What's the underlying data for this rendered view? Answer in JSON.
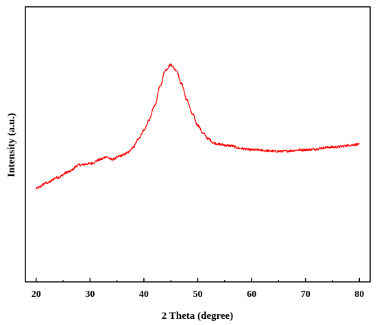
{
  "chart_data": {
    "type": "line",
    "xlabel": "2 Theta (degree)",
    "ylabel": "Intensity (a.u.)",
    "xlim": [
      18,
      82
    ],
    "ylim": [
      0,
      100
    ],
    "x_ticks": [
      20,
      30,
      40,
      50,
      60,
      70,
      80
    ],
    "y_ticks_shown": false,
    "grid": false,
    "legend": "none",
    "series": [
      {
        "color": "#ff0000",
        "x": [
          20,
          22,
          24,
          26,
          28,
          30,
          32,
          33,
          34,
          36,
          37,
          38,
          39,
          40,
          41,
          42,
          43,
          44,
          45,
          46,
          47,
          48,
          49,
          50,
          51,
          52,
          53,
          54,
          56,
          58,
          60,
          65,
          70,
          75,
          80
        ],
        "y": [
          34,
          36,
          38,
          40,
          42.5,
          43,
          44.5,
          45.5,
          44.5,
          46,
          47,
          49,
          52,
          55,
          59,
          64,
          71,
          77,
          79,
          77,
          72,
          66,
          61,
          57,
          54,
          52,
          50.5,
          50,
          49.5,
          48.5,
          48,
          47.5,
          48,
          49,
          50
        ]
      }
    ]
  }
}
